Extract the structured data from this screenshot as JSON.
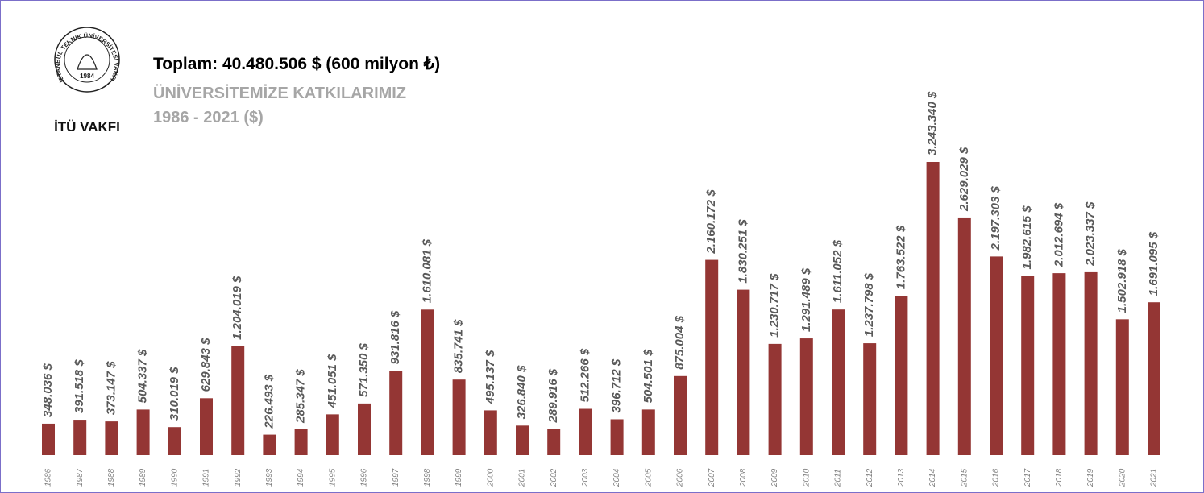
{
  "logo": {
    "ring_text": "İSTANBUL TEKNİK ÜNİVERSİTESİ VAKFI",
    "year": "1984",
    "name": "İTÜ VAKFI"
  },
  "chart_data": {
    "type": "bar",
    "title": "Toplam: 40.480.506 $ (600 milyon ₺)",
    "subtitle": "ÜNİVERSİTEMİZE KATKILARIMIZ",
    "subtitle2": "1986 - 2021 ($)",
    "color": "#943634",
    "categories": [
      "1986",
      "1987",
      "1988",
      "1989",
      "1990",
      "1991",
      "1992",
      "1993",
      "1994",
      "1995",
      "1996",
      "1997",
      "1998",
      "1999",
      "2000",
      "2001",
      "2002",
      "2003",
      "2004",
      "2005",
      "2006",
      "2007",
      "2008",
      "2009",
      "2010",
      "2011",
      "2012",
      "2013",
      "2014",
      "2015",
      "2016",
      "2017",
      "2018",
      "2019",
      "2020",
      "2021"
    ],
    "values": [
      348036,
      391518,
      373147,
      504337,
      310019,
      629843,
      1204019,
      226493,
      285347,
      451051,
      571350,
      931816,
      1610081,
      835741,
      495137,
      326840,
      289916,
      512266,
      396712,
      504501,
      875004,
      2160172,
      1830251,
      1230717,
      1291489,
      1611052,
      1237798,
      1763522,
      3243340,
      2629029,
      2197303,
      1982615,
      2012694,
      2023337,
      1502918,
      1691095
    ],
    "value_labels": [
      "348.036 $",
      "391.518 $",
      "373.147 $",
      "504.337 $",
      "310.019 $",
      "629.843 $",
      "1.204.019 $",
      "226.493 $",
      "285.347 $",
      "451.051 $",
      "571.350 $",
      "931.816 $",
      "1.610.081 $",
      "835.741 $",
      "495.137 $",
      "326.840 $",
      "289.916 $",
      "512.266 $",
      "396.712 $",
      "504.501 $",
      "875.004 $",
      "2.160.172 $",
      "1.830.251 $",
      "1.230.717 $",
      "1.291.489 $",
      "1.611.052 $",
      "1.237.798 $",
      "1.763.522 $",
      "3.243.340 $",
      "2.629.029 $",
      "2.197.303 $",
      "1.982.615 $",
      "2.012.694 $",
      "2.023.337 $",
      "1.502.918 $",
      "1.691.095 $"
    ]
  }
}
